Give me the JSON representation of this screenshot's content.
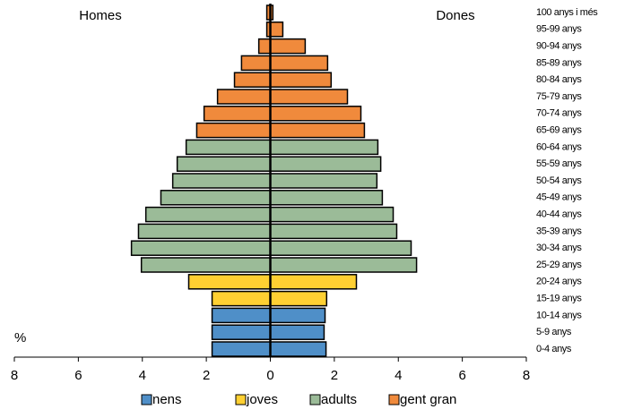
{
  "chart_data": {
    "type": "pyramid",
    "left_label": "Homes",
    "right_label": "Dones",
    "unit_label": "%",
    "xlim": [
      -8,
      8
    ],
    "xticks": [
      {
        "value": -8,
        "label": "8"
      },
      {
        "value": -6,
        "label": "6"
      },
      {
        "value": -4,
        "label": "4"
      },
      {
        "value": -2,
        "label": "2"
      },
      0,
      2,
      4,
      6,
      8
    ],
    "series": [
      {
        "name": "nens",
        "color": "#4f8fc8",
        "categories": [
          "0-4 anys",
          "5-9 anys",
          "10-14 anys"
        ],
        "homes": [
          -1.82,
          -1.82,
          -1.82
        ],
        "dones": [
          1.74,
          1.68,
          1.71
        ]
      },
      {
        "name": "joves",
        "color": "#ffd032",
        "categories": [
          "15-19 anys",
          "20-24 anys"
        ],
        "homes": [
          -1.82,
          -2.55
        ],
        "dones": [
          1.76,
          2.69
        ]
      },
      {
        "name": "adults",
        "color": "#9bbb98",
        "categories": [
          "25-29 anys",
          "30-34 anys",
          "35-39 anys",
          "40-44 anys",
          "45-49 anys",
          "50-54 anys",
          "55-59 anys",
          "60-64 anys"
        ],
        "homes": [
          -4.03,
          -4.34,
          -4.12,
          -3.89,
          -3.42,
          -3.05,
          -2.91,
          -2.63
        ],
        "dones": [
          4.57,
          4.4,
          3.95,
          3.84,
          3.5,
          3.33,
          3.45,
          3.36
        ]
      },
      {
        "name": "gent gran",
        "color": "#f08a3c",
        "categories": [
          "65-69 anys",
          "70-74 anys",
          "75-79 anys",
          "80-84 anys",
          "85-89 anys",
          "90-94 anys",
          "95-99 anys",
          "100 anys i més"
        ],
        "homes": [
          -2.3,
          -2.07,
          -1.65,
          -1.12,
          -0.9,
          -0.36,
          -0.11,
          -0.11
        ],
        "dones": [
          2.94,
          2.83,
          2.41,
          1.9,
          1.79,
          1.09,
          0.39,
          0.08
        ]
      }
    ]
  }
}
